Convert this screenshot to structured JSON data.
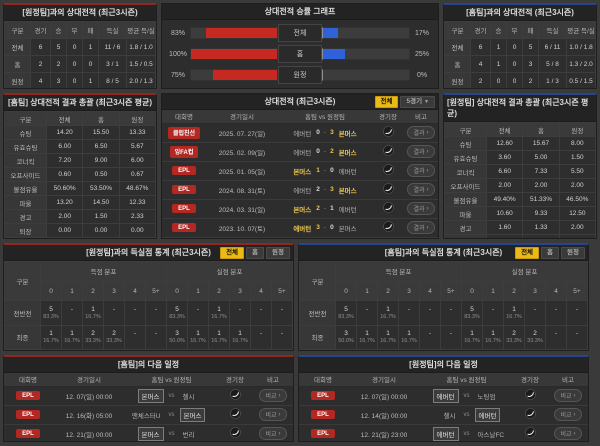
{
  "ui": {
    "vs": "vs",
    "dash": "-",
    "chevron": "›",
    "caret": "▼"
  },
  "buttons": {
    "all": "전체",
    "home": "홈",
    "away": "원정",
    "five_games": "5경기",
    "result": "결과",
    "compare": "비교"
  },
  "colors": {
    "accent_home": "#93261f",
    "accent_away": "#27458f",
    "bar_red": "#c62822",
    "bar_blue": "#2f62d9",
    "active_yellow": "#ecba16",
    "winner_yellow": "#e9c550",
    "badge_red": "#b42824"
  },
  "h2h_home": {
    "title": "[원정팀]과의 상대전적 (최근3시즌)",
    "headers": [
      "구분",
      "경기",
      "승",
      "무",
      "패",
      "득실",
      "평균 득/실"
    ],
    "rows": [
      {
        "label": "전체",
        "gp": "6",
        "w": "5",
        "d": "0",
        "l": "1",
        "gf_ga": "11 / 6",
        "avg": "1.8 / 1.0"
      },
      {
        "label": "홈",
        "gp": "2",
        "w": "2",
        "d": "0",
        "l": "0",
        "gf_ga": "3 / 1",
        "avg": "1.5 / 0.5"
      },
      {
        "label": "원정",
        "gp": "4",
        "w": "3",
        "d": "0",
        "l": "1",
        "gf_ga": "8 / 5",
        "avg": "2.0 / 1.3"
      }
    ]
  },
  "h2h_away": {
    "title": "[홈팀]과의 상대전적 (최근3시즌)",
    "headers": [
      "구분",
      "경기",
      "승",
      "무",
      "패",
      "득실",
      "평균 득/실"
    ],
    "rows": [
      {
        "label": "전체",
        "gp": "6",
        "w": "1",
        "d": "0",
        "l": "5",
        "gf_ga": "6 / 11",
        "avg": "1.0 / 1.8"
      },
      {
        "label": "홈",
        "gp": "4",
        "w": "1",
        "d": "0",
        "l": "3",
        "gf_ga": "5 / 8",
        "avg": "1.3 / 2.0"
      },
      {
        "label": "원정",
        "gp": "2",
        "w": "0",
        "d": "0",
        "l": "2",
        "gf_ga": "1 / 3",
        "avg": "0.5 / 1.5"
      }
    ]
  },
  "winrate_chart": {
    "type": "bar",
    "title": "상대전적 승률 그래프",
    "rows": [
      {
        "label": "전체",
        "home_pct": "83%",
        "home_w": 83,
        "away_pct": "17%",
        "away_w": 17
      },
      {
        "label": "홈",
        "home_pct": "100%",
        "home_w": 100,
        "away_pct": "25%",
        "away_w": 25
      },
      {
        "label": "원정",
        "home_pct": "75%",
        "home_w": 75,
        "away_pct": "0%",
        "away_w": 0
      }
    ]
  },
  "stats_home": {
    "title": "[홈팀] 상대전적 결과 총괄 (최근3시즌 평균)",
    "headers": [
      "구분",
      "전체",
      "홈",
      "원정"
    ],
    "rows": [
      {
        "label": "슈팅",
        "all": "14.20",
        "home": "15.50",
        "away": "13.33"
      },
      {
        "label": "유효슈팅",
        "all": "6.00",
        "home": "6.50",
        "away": "5.67"
      },
      {
        "label": "코너킥",
        "all": "7.20",
        "home": "9.00",
        "away": "6.00"
      },
      {
        "label": "오프사이드",
        "all": "0.60",
        "home": "0.50",
        "away": "0.67"
      },
      {
        "label": "볼점유율",
        "all": "50.60%",
        "home": "53.50%",
        "away": "48.67%"
      },
      {
        "label": "파울",
        "all": "13.20",
        "home": "14.50",
        "away": "12.33"
      },
      {
        "label": "경고",
        "all": "2.00",
        "home": "1.50",
        "away": "2.33"
      },
      {
        "label": "퇴장",
        "all": "0.00",
        "home": "0.00",
        "away": "0.00"
      }
    ]
  },
  "stats_away": {
    "title": "[원정팀] 상대전적 결과 총괄 (최근3시즌 평균)",
    "headers": [
      "구분",
      "전체",
      "홈",
      "원정"
    ],
    "rows": [
      {
        "label": "슈팅",
        "all": "12.60",
        "home": "15.67",
        "away": "8.00"
      },
      {
        "label": "유효슈팅",
        "all": "3.60",
        "home": "5.00",
        "away": "1.50"
      },
      {
        "label": "코너킥",
        "all": "6.60",
        "home": "7.33",
        "away": "5.50"
      },
      {
        "label": "오프사이드",
        "all": "2.00",
        "home": "2.00",
        "away": "2.00"
      },
      {
        "label": "볼점유율",
        "all": "49.40%",
        "home": "51.33%",
        "away": "46.50%"
      },
      {
        "label": "파울",
        "all": "10.60",
        "home": "9.33",
        "away": "12.50"
      },
      {
        "label": "경고",
        "all": "1.60",
        "home": "1.33",
        "away": "2.00"
      },
      {
        "label": "퇴장",
        "all": "0.00",
        "home": "0.00",
        "away": "0.00"
      }
    ]
  },
  "matches": {
    "title": "상대전적 (최근3시즌)",
    "headers": {
      "comp": "대회명",
      "date": "경기일시",
      "teams": "홈팀 vs 원정팀",
      "stadium": "경기장",
      "note": "비고"
    },
    "rows": [
      {
        "comp": "클럽친선",
        "date": "2025. 07. 27(일)",
        "home": "에버턴",
        "hs": "0",
        "as": "3",
        "away": "본머스",
        "winner": "away"
      },
      {
        "comp": "잉FA컵",
        "date": "2025. 02. 09(일)",
        "home": "에버턴",
        "hs": "0",
        "as": "2",
        "away": "본머스",
        "winner": "away"
      },
      {
        "comp": "EPL",
        "date": "2025. 01. 05(일)",
        "home": "본머스",
        "hs": "1",
        "as": "0",
        "away": "에버턴",
        "winner": "home"
      },
      {
        "comp": "EPL",
        "date": "2024. 08. 31(토)",
        "home": "에버턴",
        "hs": "2",
        "as": "3",
        "away": "본머스",
        "winner": "away"
      },
      {
        "comp": "EPL",
        "date": "2024. 03. 31(일)",
        "home": "본머스",
        "hs": "2",
        "as": "1",
        "away": "에버턴",
        "winner": "home"
      },
      {
        "comp": "EPL",
        "date": "2023. 10. 07(토)",
        "home": "에버턴",
        "hs": "3",
        "as": "0",
        "away": "본머스",
        "winner": "home"
      }
    ]
  },
  "goals_home": {
    "title": "[원정팀]과의 득실점 통계 (최근3시즌)",
    "row_label_header": "구분",
    "scored_header": "득점 분포",
    "conceded_header": "실점 분포",
    "bins": [
      "0",
      "1",
      "2",
      "3",
      "4",
      "5+"
    ],
    "rows": [
      {
        "label": "전반전",
        "scored": [
          {
            "n": "5",
            "p": "83.3%"
          },
          {
            "n": "-",
            "p": ""
          },
          {
            "n": "1",
            "p": "16.7%"
          },
          {
            "n": "-",
            "p": ""
          },
          {
            "n": "-",
            "p": ""
          },
          {
            "n": "-",
            "p": ""
          }
        ],
        "conceded": [
          {
            "n": "5",
            "p": "83.3%"
          },
          {
            "n": "-",
            "p": ""
          },
          {
            "n": "1",
            "p": "16.7%"
          },
          {
            "n": "-",
            "p": ""
          },
          {
            "n": "-",
            "p": ""
          },
          {
            "n": "-",
            "p": ""
          }
        ]
      },
      {
        "label": "최종",
        "scored": [
          {
            "n": "1",
            "p": "16.7%"
          },
          {
            "n": "1",
            "p": "16.7%"
          },
          {
            "n": "2",
            "p": "33.3%"
          },
          {
            "n": "2",
            "p": "33.3%"
          },
          {
            "n": "-",
            "p": ""
          },
          {
            "n": "-",
            "p": ""
          }
        ],
        "conceded": [
          {
            "n": "3",
            "p": "50.0%"
          },
          {
            "n": "1",
            "p": "16.7%"
          },
          {
            "n": "1",
            "p": "16.7%"
          },
          {
            "n": "1",
            "p": "16.7%"
          },
          {
            "n": "-",
            "p": ""
          },
          {
            "n": "-",
            "p": ""
          }
        ]
      }
    ]
  },
  "goals_away": {
    "title": "[홈팀]과의 득실점 통계 (최근3시즌)",
    "row_label_header": "구분",
    "scored_header": "득점 분포",
    "conceded_header": "실점 분포",
    "bins": [
      "0",
      "1",
      "2",
      "3",
      "4",
      "5+"
    ],
    "rows": [
      {
        "label": "전반전",
        "scored": [
          {
            "n": "5",
            "p": "83.3%"
          },
          {
            "n": "-",
            "p": ""
          },
          {
            "n": "1",
            "p": "16.7%"
          },
          {
            "n": "-",
            "p": ""
          },
          {
            "n": "-",
            "p": ""
          },
          {
            "n": "-",
            "p": ""
          }
        ],
        "conceded": [
          {
            "n": "5",
            "p": "83.3%"
          },
          {
            "n": "-",
            "p": ""
          },
          {
            "n": "1",
            "p": "16.7%"
          },
          {
            "n": "-",
            "p": ""
          },
          {
            "n": "-",
            "p": ""
          },
          {
            "n": "-",
            "p": ""
          }
        ]
      },
      {
        "label": "최종",
        "scored": [
          {
            "n": "3",
            "p": "50.0%"
          },
          {
            "n": "1",
            "p": "16.7%"
          },
          {
            "n": "1",
            "p": "16.7%"
          },
          {
            "n": "1",
            "p": "16.7%"
          },
          {
            "n": "-",
            "p": ""
          },
          {
            "n": "-",
            "p": ""
          }
        ],
        "conceded": [
          {
            "n": "1",
            "p": "16.7%"
          },
          {
            "n": "1",
            "p": "16.7%"
          },
          {
            "n": "2",
            "p": "33.3%"
          },
          {
            "n": "2",
            "p": "33.3%"
          },
          {
            "n": "-",
            "p": ""
          },
          {
            "n": "-",
            "p": ""
          }
        ]
      }
    ]
  },
  "schedule_home": {
    "title": "[홈팀]의 다음 일정",
    "headers": {
      "comp": "대회명",
      "date": "경기일시",
      "teams": "홈팀 vs 원정팀",
      "stadium": "경기장",
      "note": "비고"
    },
    "rows": [
      {
        "comp": "EPL",
        "date": "12. 07(일) 00:00",
        "home": "본머스",
        "away": "첼시",
        "focus": "home"
      },
      {
        "comp": "EPL",
        "date": "12. 16(화) 05:00",
        "home": "맨체스터U",
        "away": "본머스",
        "focus": "away"
      },
      {
        "comp": "EPL",
        "date": "12. 21(일) 00:00",
        "home": "본머스",
        "away": "번리",
        "focus": "home"
      }
    ]
  },
  "schedule_away": {
    "title": "[원정팀]의 다음 일정",
    "headers": {
      "comp": "대회명",
      "date": "경기일시",
      "teams": "홈팀 vs 원정팀",
      "stadium": "경기장",
      "note": "비고"
    },
    "rows": [
      {
        "comp": "EPL",
        "date": "12. 07(일) 00:00",
        "home": "에버턴",
        "away": "노팅엄",
        "focus": "home"
      },
      {
        "comp": "EPL",
        "date": "12. 14(일) 00:00",
        "home": "첼시",
        "away": "에버턴",
        "focus": "away"
      },
      {
        "comp": "EPL",
        "date": "12. 21(일) 23:00",
        "home": "에버턴",
        "away": "아스날FC",
        "focus": "home"
      }
    ]
  }
}
